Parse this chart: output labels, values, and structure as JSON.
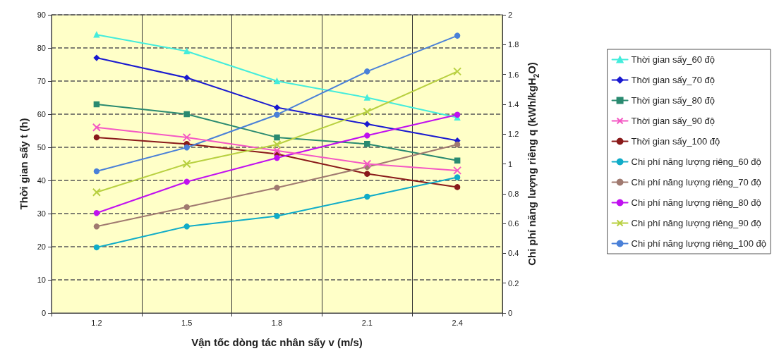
{
  "chart_data": {
    "type": "line",
    "xlabel": "Vận tốc dòng tác nhân sấy v (m/s)",
    "ylabel": "Thời gian sấy t (h)",
    "y2label": "Chi phí năng lượng riêng q (kWh/kgH$_{2}$O)",
    "categories": [
      "1.2",
      "1.5",
      "1.8",
      "2.1",
      "2.4"
    ],
    "ylim": [
      0,
      90
    ],
    "yticks": [
      0,
      10,
      20,
      30,
      40,
      50,
      60,
      70,
      80,
      90
    ],
    "y2lim": [
      0,
      2
    ],
    "y2ticks": [
      0,
      0.2,
      0.4,
      0.6,
      0.8,
      1,
      1.2,
      1.4,
      1.6,
      1.8,
      2
    ],
    "grid": true,
    "legend": "right",
    "series": [
      {
        "name": "Thời gian sấy_60 độ",
        "color": "#44ecdc",
        "marker": "triangle",
        "values": [
          84,
          79,
          70,
          65,
          59
        ]
      },
      {
        "name": "Thời gian sấy_70 độ",
        "color": "#1a1ad0",
        "marker": "diamond",
        "values": [
          77,
          71,
          62,
          57,
          52
        ]
      },
      {
        "name": "Thời gian sấy_80 độ",
        "color": "#2a8a70",
        "marker": "square",
        "values": [
          63,
          60,
          53,
          51,
          46
        ]
      },
      {
        "name": "Thời gian sấy_90 độ",
        "color": "#f458c4",
        "marker": "cross",
        "values": [
          56,
          53,
          49,
          45,
          43
        ]
      },
      {
        "name": "Thời gian sấy_100 độ",
        "color": "#8a1a1a",
        "marker": "circle",
        "values": [
          53,
          51,
          48,
          42,
          38
        ]
      },
      {
        "name": "Chi phí năng lượng riêng_60 độ",
        "color": "#10acc8",
        "marker": "circle",
        "axis": "y2",
        "values": [
          0.44,
          0.58,
          0.65,
          0.78,
          0.91
        ]
      },
      {
        "name": "Chi phí năng lượng riêng_70 độ",
        "color": "#a07a70",
        "marker": "circle",
        "axis": "y2",
        "values": [
          0.58,
          0.71,
          0.84,
          0.98,
          1.13
        ]
      },
      {
        "name": "Chi phí năng lượng riêng_80 độ",
        "color": "#c010f0",
        "marker": "circle",
        "axis": "y2",
        "values": [
          0.67,
          0.88,
          1.04,
          1.19,
          1.33
        ]
      },
      {
        "name": "Chi phí năng lượng riêng_90 độ",
        "color": "#b8d040",
        "marker": "cross",
        "axis": "y2",
        "values": [
          0.81,
          1.0,
          1.13,
          1.35,
          1.62
        ]
      },
      {
        "name": "Chi phí năng lượng riêng_100 độ",
        "color": "#4a80d8",
        "marker": "circle",
        "axis": "y2",
        "values": [
          0.95,
          1.11,
          1.33,
          1.62,
          1.86
        ]
      }
    ]
  }
}
